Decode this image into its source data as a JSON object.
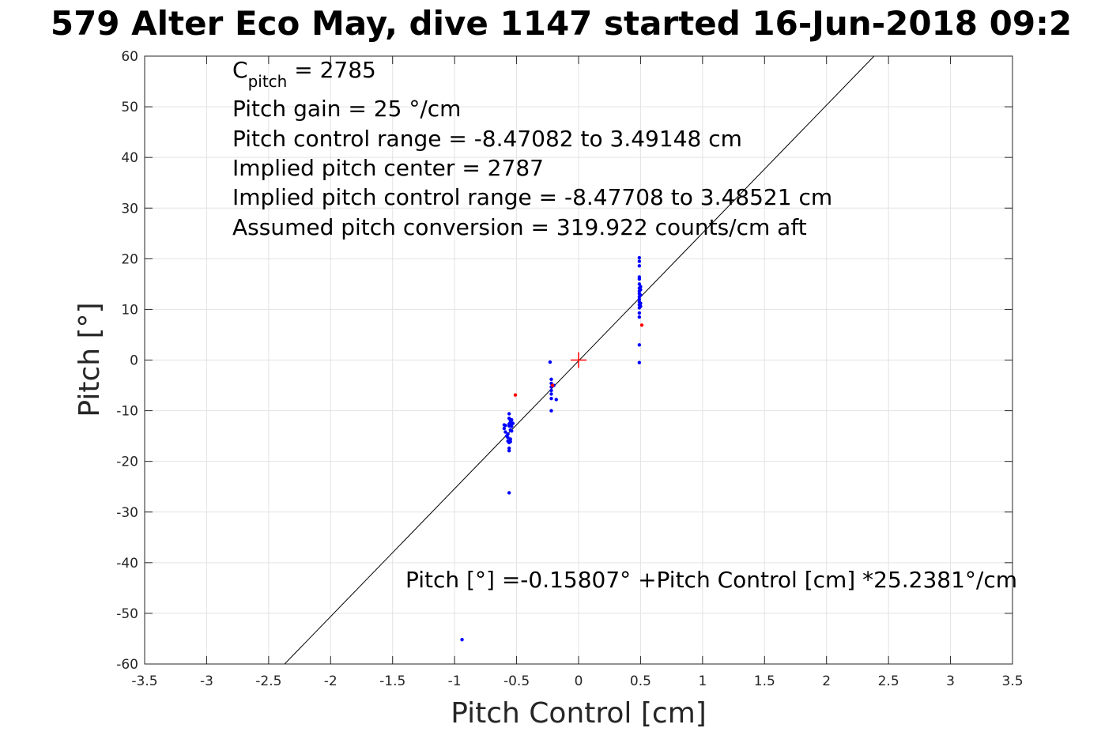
{
  "chart_data": {
    "type": "scatter",
    "title": "579 Alter Eco May, dive 1147 started 16-Jun-2018 09:2",
    "xlabel": "Pitch Control [cm]",
    "ylabel": "Pitch [°]",
    "xlim": [
      -3.5,
      3.5
    ],
    "ylim": [
      -60,
      60
    ],
    "xticks": [
      -3.5,
      -3,
      -2.5,
      -2,
      -1.5,
      -1,
      -0.5,
      0,
      0.5,
      1,
      1.5,
      2,
      2.5,
      3,
      3.5
    ],
    "yticks": [
      -60,
      -50,
      -40,
      -30,
      -20,
      -10,
      0,
      10,
      20,
      30,
      40,
      50,
      60
    ],
    "xtick_labels": [
      "-3.5",
      "-3",
      "-2.5",
      "-2",
      "-1.5",
      "-1",
      "-0.5",
      "0",
      "0.5",
      "1",
      "1.5",
      "2",
      "2.5",
      "3",
      "3.5"
    ],
    "ytick_labels": [
      "-60",
      "-50",
      "-40",
      "-30",
      "-20",
      "-10",
      "0",
      "10",
      "20",
      "30",
      "40",
      "50",
      "60"
    ],
    "grid": true,
    "annotations": {
      "c_pitch_main": "C",
      "c_pitch_sub": "pitch",
      "c_pitch_value": " = 2785",
      "lines": [
        "Pitch gain = 25 °/cm",
        "Pitch control range = -8.47082 to 3.49148 cm",
        "Implied pitch center = 2787",
        "Implied pitch control range = -8.47708 to 3.48521 cm",
        "Assumed pitch conversion = 319.922 counts/cm aft"
      ],
      "fit_equation": "Pitch [°] =-0.15807° +Pitch Control [cm] *25.2381°/cm"
    },
    "fit_line": {
      "intercept": -0.15807,
      "slope": 25.2381,
      "color": "#000000"
    },
    "center_marker": {
      "x": 0,
      "y": 0,
      "color": "#ff0000"
    },
    "series": [
      {
        "color": "#0000ff",
        "points": [
          [
            -0.94,
            -55.2
          ],
          [
            -0.56,
            -26.2
          ],
          [
            -0.6,
            -12.8
          ],
          [
            -0.6,
            -13.5
          ],
          [
            -0.59,
            -14.2
          ],
          [
            -0.59,
            -12.9
          ],
          [
            -0.58,
            -15.0
          ],
          [
            -0.57,
            -16.0
          ],
          [
            -0.57,
            -15.3
          ],
          [
            -0.57,
            -14.6
          ],
          [
            -0.56,
            -13.0
          ],
          [
            -0.56,
            -12.6
          ],
          [
            -0.56,
            -11.5
          ],
          [
            -0.56,
            -10.6
          ],
          [
            -0.56,
            -16.3
          ],
          [
            -0.56,
            -17.4
          ],
          [
            -0.56,
            -17.9
          ],
          [
            -0.55,
            -12.0
          ],
          [
            -0.55,
            -13.8
          ],
          [
            -0.55,
            -15.6
          ],
          [
            -0.55,
            -16.1
          ],
          [
            -0.54,
            -12.4
          ],
          [
            -0.54,
            -13.1
          ],
          [
            -0.54,
            -11.8
          ],
          [
            -0.54,
            -14.0
          ],
          [
            -0.55,
            -12.9
          ],
          [
            -0.53,
            -12.5
          ],
          [
            -0.23,
            -0.4
          ],
          [
            -0.22,
            -3.8
          ],
          [
            -0.22,
            -4.6
          ],
          [
            -0.22,
            -5.3
          ],
          [
            -0.22,
            -6.0
          ],
          [
            -0.22,
            -6.7
          ],
          [
            -0.22,
            -7.6
          ],
          [
            -0.22,
            -10.0
          ],
          [
            -0.18,
            -7.8
          ],
          [
            -0.2,
            -5.0
          ],
          [
            0.49,
            -0.5
          ],
          [
            0.49,
            3.0
          ],
          [
            0.49,
            8.5
          ],
          [
            0.49,
            9.3
          ],
          [
            0.49,
            10.3
          ],
          [
            0.49,
            10.9
          ],
          [
            0.49,
            11.5
          ],
          [
            0.49,
            12.0
          ],
          [
            0.49,
            12.5
          ],
          [
            0.49,
            13.1
          ],
          [
            0.49,
            13.6
          ],
          [
            0.49,
            14.2
          ],
          [
            0.49,
            15.0
          ],
          [
            0.49,
            16.0
          ],
          [
            0.49,
            16.4
          ],
          [
            0.49,
            18.6
          ],
          [
            0.49,
            19.5
          ],
          [
            0.49,
            20.2
          ],
          [
            0.5,
            11.2
          ],
          [
            0.5,
            12.8
          ],
          [
            0.5,
            13.9
          ],
          [
            0.5,
            10.6
          ],
          [
            0.5,
            14.5
          ]
        ]
      },
      {
        "color": "#ff0000",
        "points": [
          [
            -0.51,
            -6.9
          ],
          [
            -0.21,
            -5.0
          ],
          [
            0.51,
            6.9
          ]
        ]
      }
    ]
  }
}
